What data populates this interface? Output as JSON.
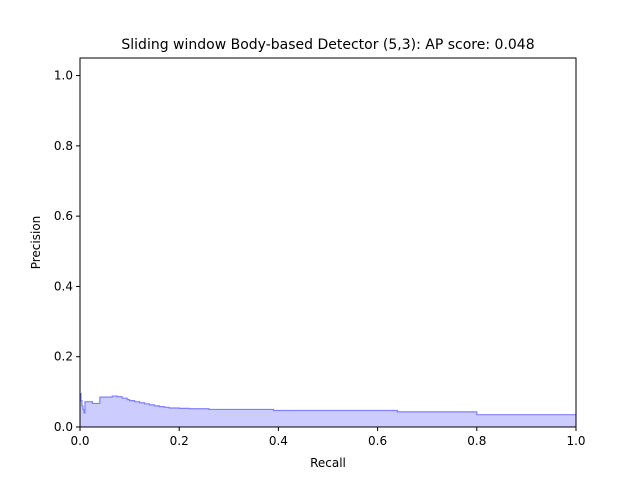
{
  "chart_data": {
    "type": "area",
    "title": "Sliding window Body-based Detector (5,3): AP score: 0.048",
    "xlabel": "Recall",
    "ylabel": "Precision",
    "xlim": [
      0.0,
      1.0
    ],
    "ylim": [
      0.0,
      1.05
    ],
    "grid": false,
    "legend": "none",
    "step": "post",
    "x_ticks": [
      0.0,
      0.2,
      0.4,
      0.6,
      0.8,
      1.0
    ],
    "y_ticks": [
      0.0,
      0.2,
      0.4,
      0.6,
      0.8,
      1.0
    ],
    "x_tick_labels": [
      "0.0",
      "0.2",
      "0.4",
      "0.6",
      "0.8",
      "1.0"
    ],
    "y_tick_labels": [
      "0.0",
      "0.2",
      "0.4",
      "0.6",
      "0.8",
      "1.0"
    ],
    "series": [
      {
        "line_color": "#8080ff",
        "fill_color": "#ccccff",
        "x": [
          0.0,
          0.002,
          0.004,
          0.006,
          0.008,
          0.01,
          0.025,
          0.04,
          0.065,
          0.075,
          0.085,
          0.095,
          0.1,
          0.11,
          0.12,
          0.13,
          0.14,
          0.15,
          0.16,
          0.17,
          0.18,
          0.2,
          0.22,
          0.26,
          0.39,
          0.64,
          0.8,
          1.0
        ],
        "y": [
          0.095,
          0.075,
          0.06,
          0.05,
          0.04,
          0.072,
          0.067,
          0.085,
          0.088,
          0.086,
          0.082,
          0.078,
          0.075,
          0.072,
          0.069,
          0.066,
          0.063,
          0.06,
          0.058,
          0.056,
          0.054,
          0.053,
          0.052,
          0.05,
          0.047,
          0.043,
          0.035,
          0.035
        ]
      }
    ]
  }
}
